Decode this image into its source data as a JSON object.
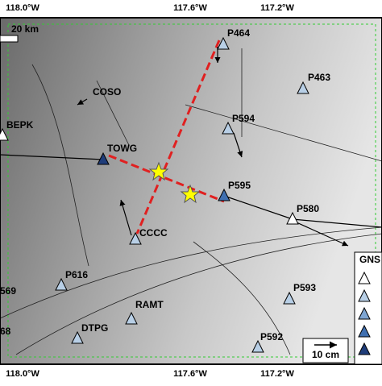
{
  "map": {
    "top_labels": [
      "118.0°W",
      "117.6°W",
      "117.2°W"
    ],
    "bottom_labels": [
      "118.0°W",
      "117.6°W",
      "117.2°W"
    ],
    "scale_bar": "20 km",
    "stations": [
      {
        "label": "P464",
        "color": "#b8cfe6"
      },
      {
        "label": "P463",
        "color": "#b8cfe6"
      },
      {
        "label": "COSO",
        "color": null
      },
      {
        "label": "P594",
        "color": "#b8cfe6"
      },
      {
        "label": "BEPK",
        "color": "#ffffff"
      },
      {
        "label": "TOWG",
        "color": "#1f3d7a"
      },
      {
        "label": "P595",
        "color": "#3f6fb0"
      },
      {
        "label": "P580",
        "color": "#ffffff"
      },
      {
        "label": "CCCC",
        "color": "#b8cfe6"
      },
      {
        "label": "P616",
        "color": "#b8cfe6"
      },
      {
        "label": "P593",
        "color": "#b8cfe6"
      },
      {
        "label": "RAMT",
        "color": "#b8cfe6"
      },
      {
        "label": "DTPG",
        "color": "#b8cfe6"
      },
      {
        "label": "P592",
        "color": "#b8cfe6"
      },
      {
        "label": "569",
        "color": null
      },
      {
        "label": "68",
        "color": null
      }
    ],
    "legend": {
      "title": "GNS",
      "colors": [
        "#ffffff",
        "#b8cfe6",
        "#7fa6d3",
        "#3f6fb0",
        "#1f3d7a"
      ]
    },
    "velocity_scale": "10 cm"
  }
}
